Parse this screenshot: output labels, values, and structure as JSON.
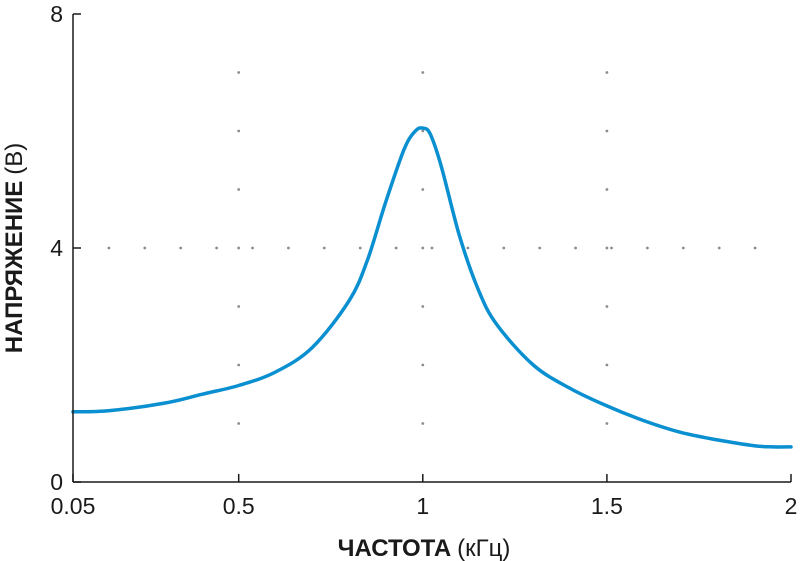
{
  "chart_data": {
    "type": "line",
    "xlabel_main": "ЧАСТОТА",
    "xlabel_unit": "(кГц)",
    "ylabel_main": "НАПРЯЖЕНИЕ",
    "ylabel_unit": "(В)",
    "xlim": [
      0.05,
      2
    ],
    "ylim": [
      0,
      8
    ],
    "x_ticks": [
      0.05,
      0.5,
      1,
      1.5,
      2
    ],
    "x_tick_labels": [
      "0.05",
      "0.5",
      "1",
      "1.5",
      "2"
    ],
    "y_ticks": [
      0,
      4,
      8
    ],
    "y_tick_labels": [
      "0",
      "4",
      "8"
    ],
    "grid": "dotted",
    "line_color": "#0a8fd0",
    "series": [
      {
        "x": [
          0.05,
          0.15,
          0.3,
          0.4,
          0.5,
          0.6,
          0.7,
          0.8,
          0.85,
          0.9,
          0.95,
          0.98,
          1.0,
          1.02,
          1.05,
          1.1,
          1.15,
          1.2,
          1.3,
          1.4,
          1.5,
          1.6,
          1.7,
          1.8,
          1.9,
          1.95,
          2.0
        ],
        "y": [
          1.2,
          1.22,
          1.35,
          1.5,
          1.65,
          1.88,
          2.3,
          3.1,
          3.8,
          4.8,
          5.7,
          6.0,
          6.05,
          5.95,
          5.4,
          4.2,
          3.3,
          2.7,
          2.0,
          1.6,
          1.3,
          1.05,
          0.85,
          0.72,
          0.62,
          0.6,
          0.6
        ]
      }
    ]
  }
}
